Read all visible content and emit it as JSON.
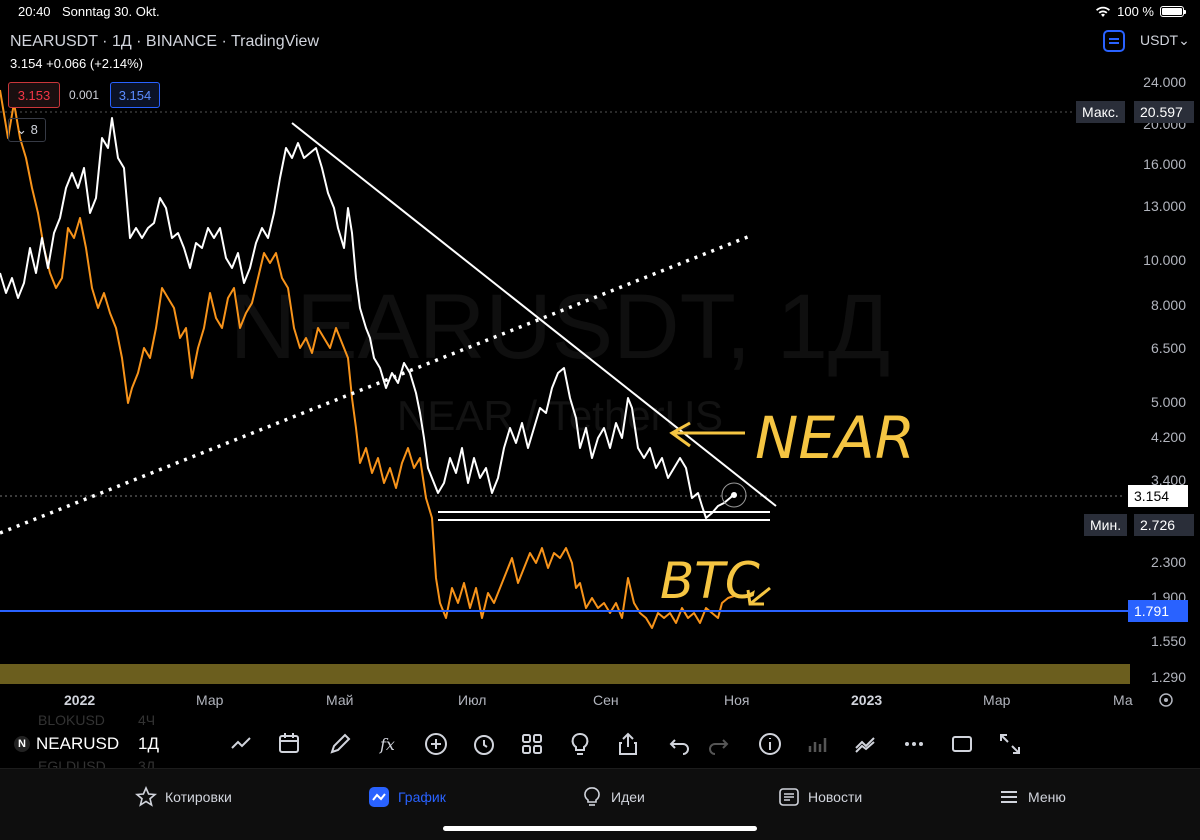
{
  "status_bar": {
    "time": "20:40",
    "date": "Sonntag 30. Okt.",
    "battery": "100 %"
  },
  "header": {
    "symbol_title": "NEARUSDT · 1Д · BINANCE · TradingView",
    "price_line": "3.154 +0.066 (+2.14%)",
    "bid": "3.153",
    "spread": "0.001",
    "ask": "3.154",
    "collapsed_count": "8",
    "currency": "USDT"
  },
  "watermark": {
    "main": "NEARUSDT, 1Д",
    "sub": "NEAR / TetherUS"
  },
  "price_axis": {
    "ticks": [
      "24.000",
      "20.000",
      "16.000",
      "13.000",
      "10.000",
      "8.000",
      "6.500",
      "5.000",
      "4.200",
      "3.400",
      "2.300",
      "1.900",
      "1.550",
      "1.290"
    ],
    "max_label": "Макс.",
    "max_value": "20.597",
    "min_label": "Мин.",
    "min_value": "2.726",
    "last_price": "3.154",
    "blue_level": "1.791"
  },
  "time_axis": {
    "ticks": [
      "2022",
      "Мар",
      "Май",
      "Июл",
      "Сен",
      "Ноя",
      "2023",
      "Мар",
      "Ма"
    ]
  },
  "annotations": {
    "near": "NEAR",
    "btc": "BTC"
  },
  "toolbar": {
    "symbol": "NEARUSD",
    "interval": "1Д",
    "ghost_top": "BLOKUSD",
    "ghost_top_interval": "4Ч",
    "ghost_bottom": "EGLDUSD",
    "ghost_bottom_interval": "3Д"
  },
  "tabs": [
    {
      "label": "Котировки",
      "icon": "star-icon"
    },
    {
      "label": "График",
      "icon": "chart-icon"
    },
    {
      "label": "Идеи",
      "icon": "lightbulb-icon"
    },
    {
      "label": "Новости",
      "icon": "news-icon"
    },
    {
      "label": "Меню",
      "icon": "menu-icon"
    }
  ],
  "colors": {
    "near_line": "#ffffff",
    "btc_line": "#f7931a",
    "blue_level": "#2962ff",
    "annotation": "#f5c542",
    "bid": "#f23645",
    "accent": "#2962ff",
    "olive_band": "#6b5e1e"
  }
}
